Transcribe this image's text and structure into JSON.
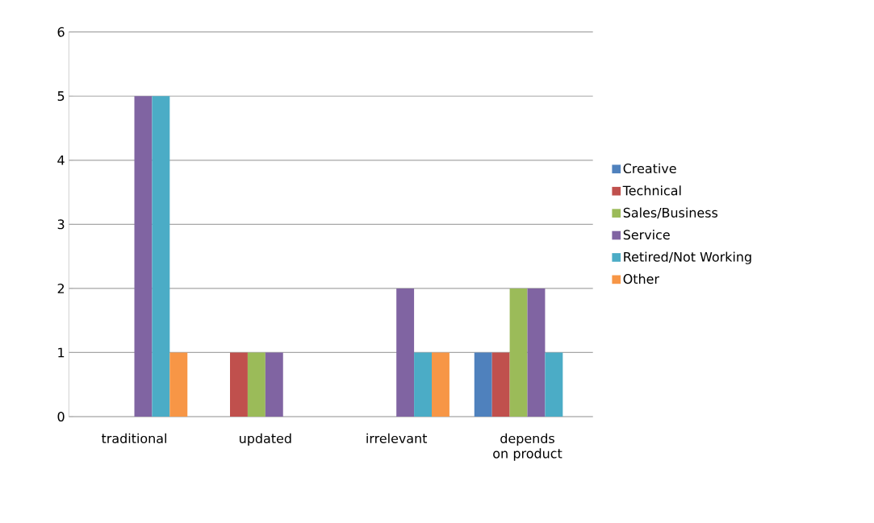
{
  "chart_data": {
    "type": "bar",
    "categories": [
      "traditional",
      "updated",
      "irrelevant",
      "depends on product"
    ],
    "series": [
      {
        "name": "Creative",
        "color": "#4f81bd",
        "values": [
          0,
          0,
          0,
          1
        ]
      },
      {
        "name": "Technical",
        "color": "#c0504d",
        "values": [
          0,
          1,
          0,
          1
        ]
      },
      {
        "name": "Sales/Business",
        "color": "#9bbb59",
        "values": [
          0,
          1,
          0,
          2
        ]
      },
      {
        "name": "Service",
        "color": "#8064a2",
        "values": [
          5,
          1,
          2,
          2
        ]
      },
      {
        "name": "Retired/Not Working",
        "color": "#4bacc6",
        "values": [
          5,
          0,
          1,
          1
        ]
      },
      {
        "name": "Other",
        "color": "#f79646",
        "values": [
          1,
          0,
          1,
          0
        ]
      }
    ],
    "ylim": [
      0,
      6
    ],
    "yticks": [
      0,
      1,
      2,
      3,
      4,
      5,
      6
    ],
    "grid": "y",
    "legend": "right"
  }
}
